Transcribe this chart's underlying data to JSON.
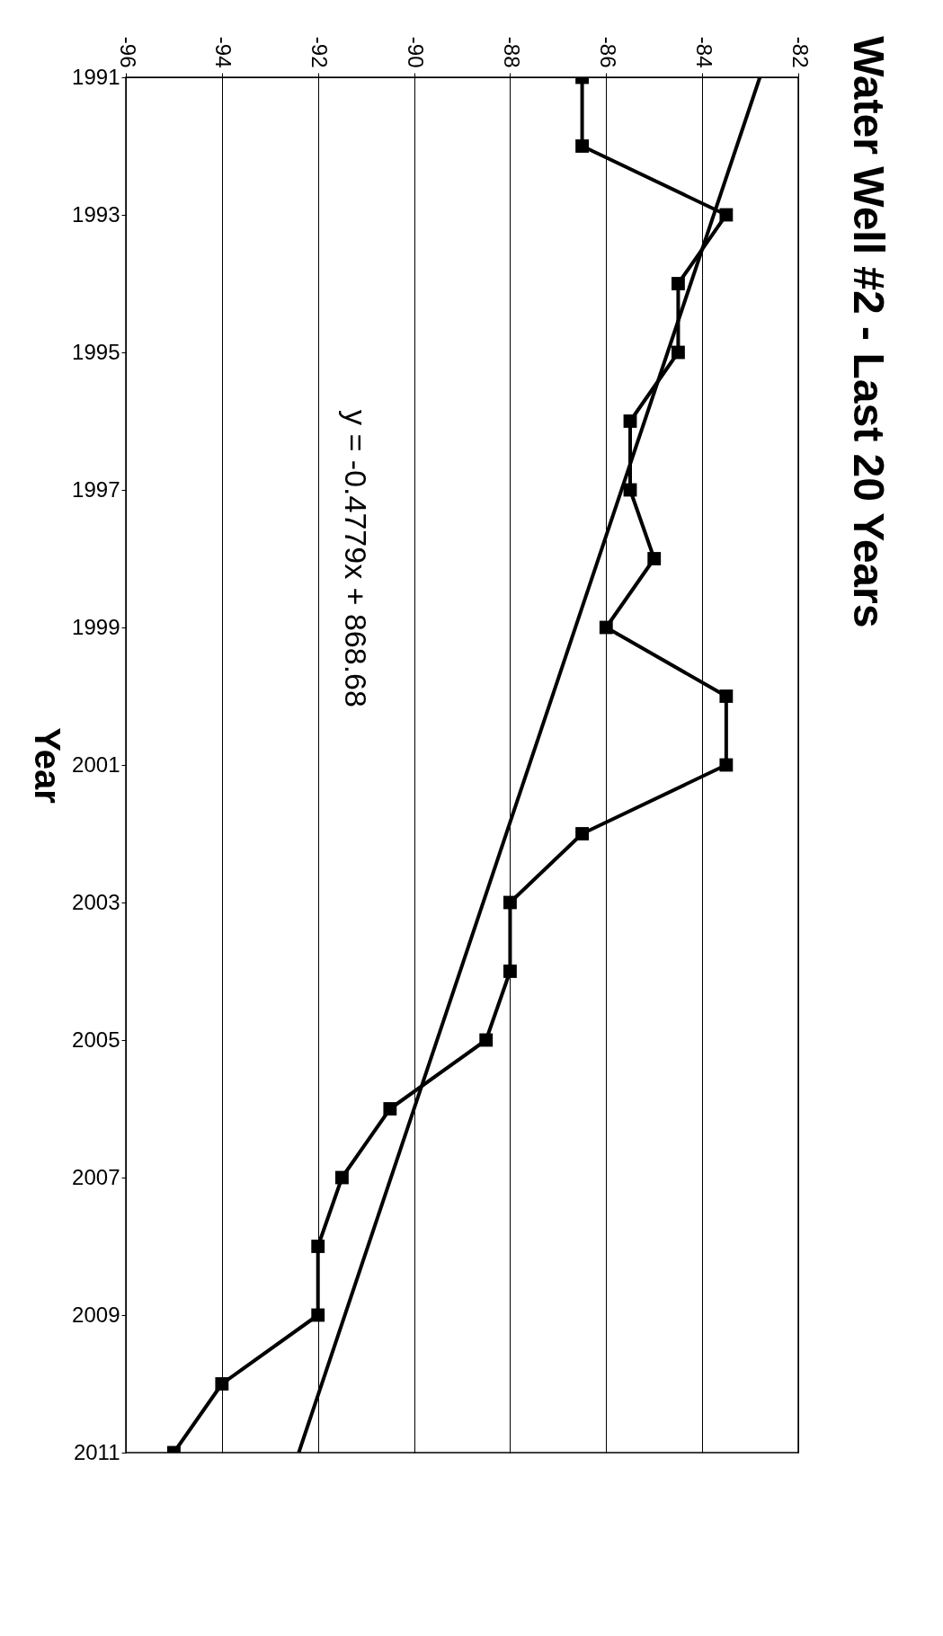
{
  "chart_data": {
    "type": "line",
    "title": "Water Well #2 - Last 20 Years",
    "ylabel": "Year",
    "series": [
      {
        "color": "#000000",
        "marker": "square",
        "x": [
          -86.5,
          -86.5,
          -83.5,
          -84.5,
          -84.5,
          -85.5,
          -85.5,
          -85,
          -86,
          -83.5,
          -83.5,
          -86.5,
          -88,
          -88,
          -88.5,
          -90.5,
          -91.5,
          -92,
          -92,
          -94,
          -95
        ],
        "values": [
          1991,
          1992,
          1993,
          1994,
          1995,
          1996,
          1997,
          1998,
          1999,
          2000,
          2001,
          2002,
          2003,
          2004,
          2005,
          2006,
          2007,
          2008,
          2009,
          2010,
          2011
        ]
      },
      {
        "type": "line",
        "color": "#000000",
        "marker": "none",
        "x": [
          -82.8,
          -92.4
        ],
        "values": [
          1991,
          2011
        ]
      }
    ],
    "annotations": [
      "y = -0.4779x + 868.68"
    ],
    "xlim": [
      -96,
      -82
    ],
    "xticks": [
      -96,
      -94,
      -92,
      -90,
      -88,
      -86,
      -84,
      -82
    ],
    "ylim": [
      2011,
      1991
    ],
    "yticks": [
      1991,
      1993,
      1995,
      1997,
      1999,
      2001,
      2003,
      2005,
      2007,
      2009,
      2011
    ],
    "grid": "x"
  }
}
